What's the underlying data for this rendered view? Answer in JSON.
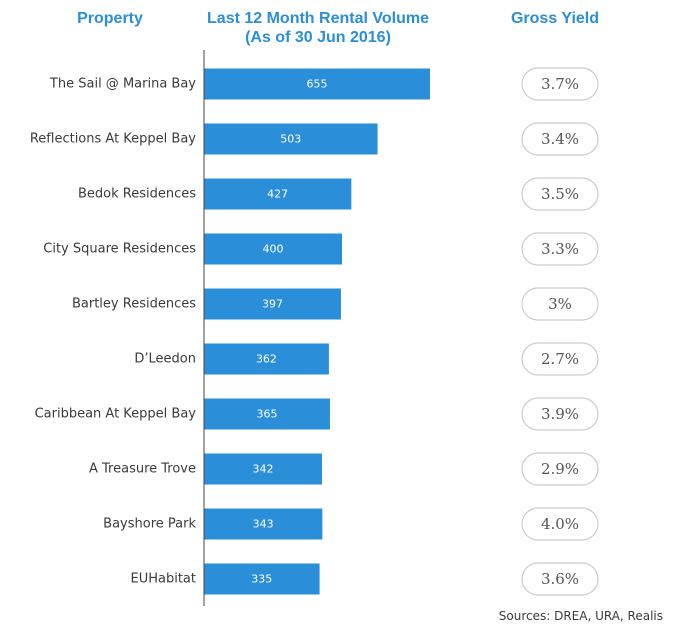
{
  "headers": {
    "property": "Property",
    "volume_line1": "Last 12 Month Rental Volume",
    "volume_line2": "(As of 30 Jun 2016)",
    "yield": "Gross Yield"
  },
  "source": "Sources: DREA, URA, Realis",
  "colors": {
    "bar": "#2b8ed8",
    "header": "#2b8ed8",
    "axis": "#444444",
    "pill_border": "#cccccc"
  },
  "chart_data": {
    "type": "bar",
    "orientation": "horizontal",
    "categories": [
      "The Sail @ Marina Bay",
      "Reflections At Keppel Bay",
      "Bedok Residences",
      "City Square Residences",
      "Bartley Residences",
      "D’Leedon",
      "Caribbean At Keppel Bay",
      "A Treasure Trove",
      "Bayshore Park",
      "EUHabitat"
    ],
    "values": [
      655,
      503,
      427,
      400,
      397,
      362,
      365,
      342,
      343,
      335
    ],
    "value_labels": [
      "655",
      "503",
      "427",
      "400",
      "397",
      "362",
      "365",
      "342",
      "343",
      "335"
    ],
    "gross_yield": [
      "3.7%",
      "3.4%",
      "3.5%",
      "3.3%",
      "3%",
      "2.7%",
      "3.9%",
      "2.9%",
      "4.0%",
      "3.6%"
    ],
    "xlim": [
      0,
      655
    ],
    "grid": false,
    "legend": "none"
  }
}
